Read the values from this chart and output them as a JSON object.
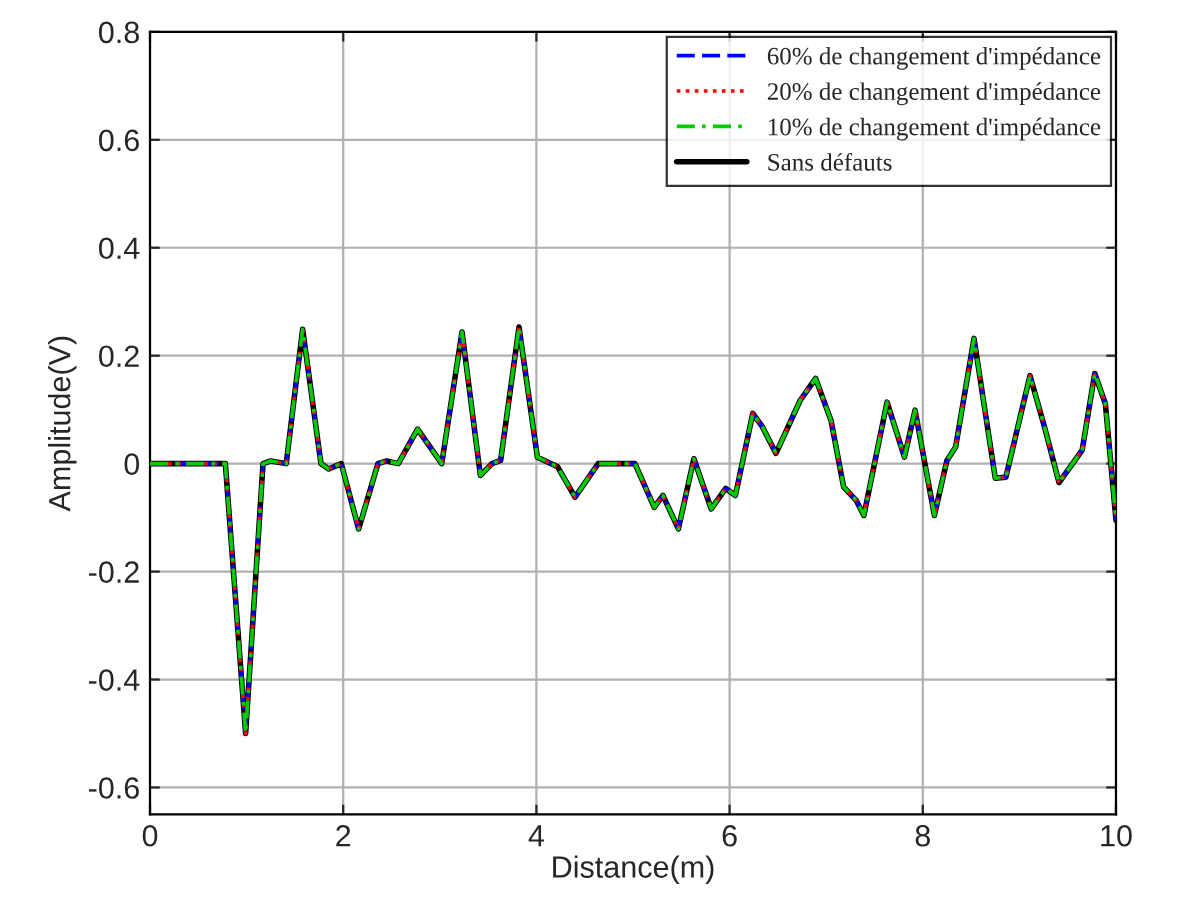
{
  "chart_data": {
    "type": "line",
    "xlabel": "Distance(m)",
    "ylabel": "Amplitude(V)",
    "x": [
      0,
      0.78,
      0.99,
      1.17,
      1.25,
      1.41,
      1.58,
      1.77,
      1.85,
      1.98,
      2.16,
      2.36,
      2.45,
      2.57,
      2.77,
      3.02,
      3.23,
      3.42,
      3.54,
      3.63,
      3.82,
      4.01,
      4.22,
      4.4,
      4.64,
      5.02,
      5.22,
      5.31,
      5.47,
      5.63,
      5.81,
      5.96,
      6.06,
      6.24,
      6.34,
      6.48,
      6.73,
      6.89,
      7.05,
      7.18,
      7.31,
      7.39,
      7.63,
      7.81,
      7.92,
      8.12,
      8.25,
      8.34,
      8.53,
      8.75,
      8.86,
      9.11,
      9.26,
      9.41,
      9.65,
      9.78,
      9.89,
      10
    ],
    "series": [
      {
        "name": "60% de changement d'impédance",
        "color": "#0000ff",
        "line_style": "dashed",
        "values": [
          0,
          0,
          -0.5,
          0,
          0.005,
          0,
          0.249,
          0,
          -0.01,
          0,
          -0.121,
          0,
          0.005,
          0,
          0.064,
          0,
          0.244,
          -0.022,
          0,
          0.006,
          0.253,
          0.012,
          -0.006,
          -0.062,
          0,
          0,
          -0.081,
          -0.059,
          -0.121,
          0.009,
          -0.084,
          -0.046,
          -0.059,
          0.093,
          0.068,
          0.019,
          0.117,
          0.158,
          0.08,
          -0.043,
          -0.068,
          -0.096,
          0.114,
          0.012,
          0.099,
          -0.096,
          0.006,
          0.031,
          0.232,
          -0.027,
          -0.025,
          0.163,
          0.068,
          -0.035,
          0.025,
          0.167,
          0.111,
          -0.105
        ]
      },
      {
        "name": "20% de changement d'impédance",
        "color": "#ff0000",
        "line_style": "dotted",
        "values": [
          0,
          0,
          -0.5,
          0,
          0.005,
          0,
          0.249,
          0,
          -0.01,
          0,
          -0.121,
          0,
          0.005,
          0,
          0.064,
          0,
          0.244,
          -0.022,
          0,
          0.006,
          0.253,
          0.012,
          -0.006,
          -0.062,
          0,
          0,
          -0.081,
          -0.059,
          -0.121,
          0.009,
          -0.084,
          -0.046,
          -0.059,
          0.093,
          0.068,
          0.019,
          0.117,
          0.158,
          0.08,
          -0.043,
          -0.068,
          -0.096,
          0.114,
          0.012,
          0.099,
          -0.096,
          0.006,
          0.031,
          0.232,
          -0.027,
          -0.025,
          0.163,
          0.068,
          -0.035,
          0.025,
          0.167,
          0.111,
          -0.105
        ]
      },
      {
        "name": "10% de changement d'impédance",
        "color": "#00cc00",
        "line_style": "dashdot",
        "values": [
          0,
          0,
          -0.5,
          0,
          0.005,
          0,
          0.249,
          0,
          -0.01,
          0,
          -0.121,
          0,
          0.005,
          0,
          0.064,
          0,
          0.244,
          -0.022,
          0,
          0.006,
          0.253,
          0.012,
          -0.006,
          -0.062,
          0,
          0,
          -0.081,
          -0.059,
          -0.121,
          0.009,
          -0.084,
          -0.046,
          -0.059,
          0.093,
          0.068,
          0.019,
          0.117,
          0.158,
          0.08,
          -0.043,
          -0.068,
          -0.096,
          0.114,
          0.012,
          0.099,
          -0.096,
          0.006,
          0.031,
          0.232,
          -0.027,
          -0.025,
          0.163,
          0.068,
          -0.035,
          0.025,
          0.167,
          0.111,
          -0.105
        ]
      },
      {
        "name": "Sans défauts",
        "color": "#000000",
        "line_style": "solid",
        "values": [
          0,
          0,
          -0.5,
          0,
          0.005,
          0,
          0.249,
          0,
          -0.01,
          0,
          -0.121,
          0,
          0.005,
          0,
          0.064,
          0,
          0.244,
          -0.022,
          0,
          0.006,
          0.253,
          0.012,
          -0.006,
          -0.062,
          0,
          0,
          -0.081,
          -0.059,
          -0.121,
          0.009,
          -0.084,
          -0.046,
          -0.059,
          0.093,
          0.068,
          0.019,
          0.117,
          0.158,
          0.08,
          -0.043,
          -0.068,
          -0.096,
          0.114,
          0.012,
          0.099,
          -0.096,
          0.006,
          0.031,
          0.232,
          -0.027,
          -0.025,
          0.163,
          0.068,
          -0.035,
          0.025,
          0.167,
          0.111,
          -0.105
        ]
      }
    ],
    "xlim": [
      0,
      10
    ],
    "xticks": [
      0,
      2,
      4,
      6,
      8,
      10
    ],
    "ylim": [
      -0.65,
      0.8
    ],
    "yticks": [
      -0.6,
      -0.4,
      -0.2,
      0,
      0.2,
      0.4,
      0.6,
      0.8
    ],
    "grid": true,
    "legend": "top right"
  }
}
